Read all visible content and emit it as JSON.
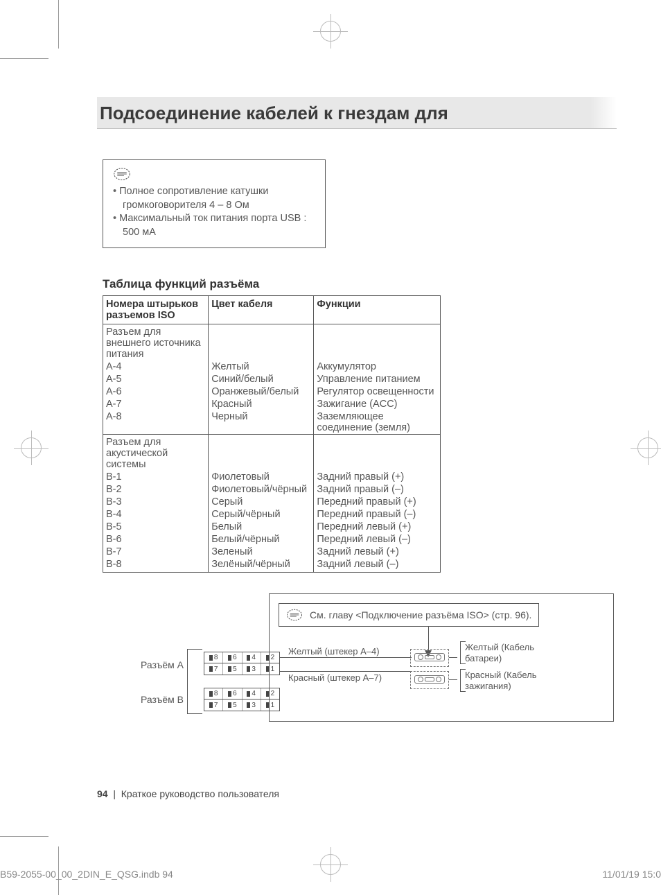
{
  "title": "Подсоединение кабелей к гнездам для",
  "note": {
    "items": [
      "Полное сопротивление катушки громкоговорителя 4 – 8 Ом",
      "Максимальный ток питания порта USB : 500 мА"
    ]
  },
  "table": {
    "heading": "Таблица функций разъёма",
    "columns": [
      "Номера штырьков разъемов ISO",
      "Цвет кабеля",
      "Функции"
    ],
    "sections": [
      {
        "header": "Разъем для внешнего источника питания",
        "rows": [
          [
            "A-4",
            "Желтый",
            "Аккумулятор"
          ],
          [
            "A-5",
            "Синий/белый",
            "Управление питанием"
          ],
          [
            "A-6",
            "Оранжевый/белый",
            "Регулятор освещенности"
          ],
          [
            "A-7",
            "Красный",
            "Зажигание (ACC)"
          ],
          [
            "A-8",
            "Черный",
            "Заземляющее соединение (земля)"
          ]
        ]
      },
      {
        "header": "Разъем для акустической системы",
        "rows": [
          [
            "B-1",
            "Фиолетовый",
            "Задний правый (+)"
          ],
          [
            "B-2",
            "Фиолетовый/чёрный",
            "Задний правый (–)"
          ],
          [
            "B-3",
            "Серый",
            "Передний правый (+)"
          ],
          [
            "B-4",
            "Серый/чёрный",
            "Передний правый (–)"
          ],
          [
            "B-5",
            "Белый",
            "Передний левый (+)"
          ],
          [
            "B-6",
            "Белый/чёрный",
            "Передний левый (–)"
          ],
          [
            "B-7",
            "Зеленый",
            "Задний левый (+)"
          ],
          [
            "B-8",
            "Зелёный/чёрный",
            "Задний левый (–)"
          ]
        ]
      }
    ]
  },
  "diagram": {
    "info_text": "См. главу <Подключение разъёма ISO> (стр. 96).",
    "conn_a": "Разъём A",
    "conn_b": "Разъём B",
    "pins_top": [
      "8",
      "6",
      "4",
      "2"
    ],
    "pins_bot": [
      "7",
      "5",
      "3",
      "1"
    ],
    "wire_a4": "Желтый (штекер A–4)",
    "wire_a7": "Красный (штекер A–7)",
    "out_yellow": "Желтый (Кабель батареи)",
    "out_red": "Красный (Кабель зажигания)"
  },
  "footer": {
    "page": "94",
    "text": "Краткое руководство пользователя"
  },
  "slug": {
    "file": "B59-2055-00_00_2DIN_E_QSG.indb   94",
    "date": "11/01/19   15:0"
  },
  "colors": {
    "text": "#555555",
    "heading": "#333333",
    "border": "#555555",
    "bg_title": "#e8e8e8"
  }
}
